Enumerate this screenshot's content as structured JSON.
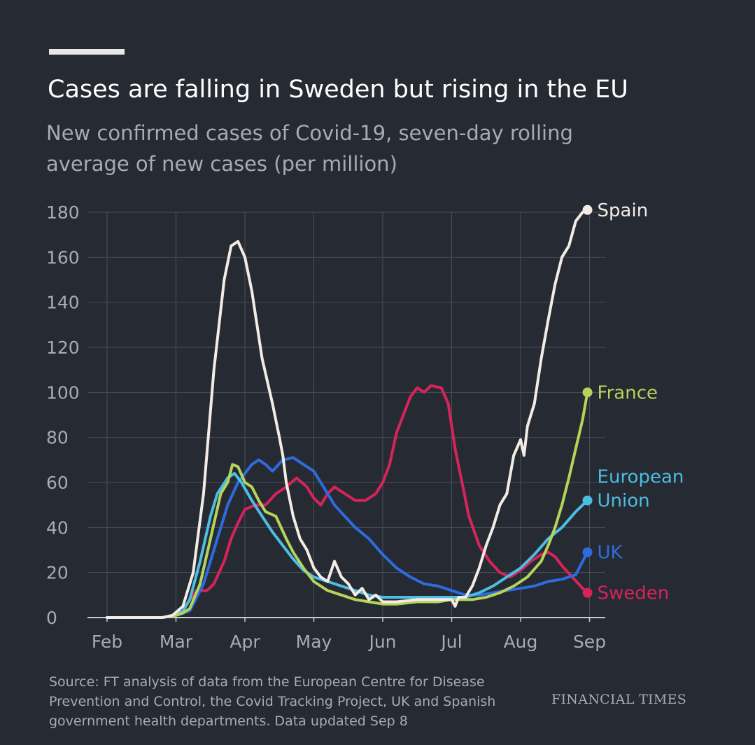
{
  "header": {
    "title": "Cases are falling in Sweden but rising in the EU",
    "subtitle": "New confirmed cases of Covid-19, seven-day rolling average of new cases (per million)"
  },
  "footer": {
    "source": "Source: FT analysis of data from the European Centre for Disease Prevention and Control, the Covid Tracking Project, UK and Spanish government health departments. Data updated Sep 8",
    "brand": "FINANCIAL TIMES"
  },
  "colors": {
    "background": "#262a33",
    "grid": "#4a4f5a",
    "axis_text": "#a7abb3"
  },
  "chart_data": {
    "type": "line",
    "title": "Cases are falling in Sweden but rising in the EU",
    "subtitle": "New confirmed cases of Covid-19, seven-day rolling average of new cases (per million)",
    "xlabel": "",
    "ylabel": "",
    "x_ticks": [
      "Feb",
      "Mar",
      "Apr",
      "May",
      "Jun",
      "Jul",
      "Aug",
      "Sep"
    ],
    "x_unit": "months since 1 Feb 2020",
    "xlim": [
      -0.1,
      7.05
    ],
    "ylim": [
      0,
      180
    ],
    "y_ticks": [
      0,
      20,
      40,
      60,
      80,
      100,
      120,
      140,
      160,
      180
    ],
    "grid": true,
    "legend": "direct labels at line ends (right)",
    "series": [
      {
        "name": "Spain",
        "color": "#f3ece4",
        "points": [
          [
            0,
            0
          ],
          [
            0.5,
            0
          ],
          [
            0.8,
            0
          ],
          [
            0.95,
            1
          ],
          [
            1.1,
            5
          ],
          [
            1.25,
            20
          ],
          [
            1.4,
            55
          ],
          [
            1.55,
            110
          ],
          [
            1.7,
            150
          ],
          [
            1.8,
            165
          ],
          [
            1.9,
            167
          ],
          [
            2.0,
            160
          ],
          [
            2.1,
            145
          ],
          [
            2.25,
            115
          ],
          [
            2.4,
            95
          ],
          [
            2.5,
            80
          ],
          [
            2.55,
            72
          ],
          [
            2.6,
            60
          ],
          [
            2.7,
            45
          ],
          [
            2.8,
            35
          ],
          [
            2.9,
            30
          ],
          [
            3.0,
            22
          ],
          [
            3.1,
            18
          ],
          [
            3.2,
            16
          ],
          [
            3.3,
            25
          ],
          [
            3.4,
            18
          ],
          [
            3.5,
            15
          ],
          [
            3.6,
            10
          ],
          [
            3.7,
            13
          ],
          [
            3.8,
            8
          ],
          [
            3.9,
            10
          ],
          [
            4.0,
            7
          ],
          [
            4.2,
            7
          ],
          [
            4.5,
            8
          ],
          [
            4.8,
            8
          ],
          [
            5.0,
            8
          ],
          [
            5.05,
            5
          ],
          [
            5.1,
            9
          ],
          [
            5.2,
            9
          ],
          [
            5.3,
            14
          ],
          [
            5.4,
            22
          ],
          [
            5.5,
            32
          ],
          [
            5.6,
            40
          ],
          [
            5.7,
            50
          ],
          [
            5.8,
            55
          ],
          [
            5.9,
            72
          ],
          [
            6.0,
            79
          ],
          [
            6.05,
            72
          ],
          [
            6.1,
            85
          ],
          [
            6.2,
            95
          ],
          [
            6.3,
            115
          ],
          [
            6.4,
            132
          ],
          [
            6.5,
            148
          ],
          [
            6.6,
            160
          ],
          [
            6.7,
            165
          ],
          [
            6.8,
            176
          ],
          [
            6.9,
            180
          ],
          [
            6.97,
            181
          ]
        ],
        "end_value": 181
      },
      {
        "name": "France",
        "color": "#b5d45a",
        "points": [
          [
            0,
            0
          ],
          [
            0.5,
            0
          ],
          [
            0.8,
            0
          ],
          [
            1.0,
            1
          ],
          [
            1.1,
            2
          ],
          [
            1.2,
            4
          ],
          [
            1.35,
            15
          ],
          [
            1.5,
            35
          ],
          [
            1.65,
            55
          ],
          [
            1.75,
            60
          ],
          [
            1.82,
            68
          ],
          [
            1.9,
            67
          ],
          [
            2.0,
            60
          ],
          [
            2.1,
            58
          ],
          [
            2.2,
            52
          ],
          [
            2.3,
            47
          ],
          [
            2.45,
            45
          ],
          [
            2.6,
            35
          ],
          [
            2.7,
            29
          ],
          [
            2.85,
            22
          ],
          [
            3.0,
            16
          ],
          [
            3.2,
            12
          ],
          [
            3.4,
            10
          ],
          [
            3.6,
            8
          ],
          [
            3.8,
            7
          ],
          [
            4.0,
            6
          ],
          [
            4.2,
            6
          ],
          [
            4.5,
            7
          ],
          [
            4.8,
            7
          ],
          [
            5.0,
            8
          ],
          [
            5.3,
            8
          ],
          [
            5.5,
            9
          ],
          [
            5.7,
            11
          ],
          [
            5.9,
            14
          ],
          [
            6.1,
            18
          ],
          [
            6.3,
            25
          ],
          [
            6.4,
            32
          ],
          [
            6.5,
            40
          ],
          [
            6.6,
            50
          ],
          [
            6.7,
            62
          ],
          [
            6.8,
            75
          ],
          [
            6.9,
            88
          ],
          [
            6.97,
            100
          ]
        ],
        "end_value": 100
      },
      {
        "name": "European Union",
        "color": "#4dbde3",
        "points": [
          [
            0,
            0
          ],
          [
            0.5,
            0
          ],
          [
            0.8,
            0
          ],
          [
            0.95,
            1
          ],
          [
            1.1,
            3
          ],
          [
            1.2,
            8
          ],
          [
            1.35,
            25
          ],
          [
            1.5,
            45
          ],
          [
            1.6,
            55
          ],
          [
            1.75,
            62
          ],
          [
            1.85,
            64
          ],
          [
            1.95,
            60
          ],
          [
            2.1,
            52
          ],
          [
            2.25,
            45
          ],
          [
            2.4,
            38
          ],
          [
            2.55,
            32
          ],
          [
            2.7,
            26
          ],
          [
            2.85,
            21
          ],
          [
            3.0,
            18
          ],
          [
            3.2,
            16
          ],
          [
            3.4,
            14
          ],
          [
            3.6,
            12
          ],
          [
            3.8,
            10
          ],
          [
            4.0,
            9
          ],
          [
            4.2,
            9
          ],
          [
            4.5,
            9
          ],
          [
            4.8,
            9
          ],
          [
            5.0,
            9
          ],
          [
            5.2,
            9
          ],
          [
            5.4,
            11
          ],
          [
            5.6,
            14
          ],
          [
            5.8,
            18
          ],
          [
            6.0,
            22
          ],
          [
            6.2,
            28
          ],
          [
            6.4,
            35
          ],
          [
            6.6,
            40
          ],
          [
            6.8,
            47
          ],
          [
            6.97,
            52
          ]
        ],
        "end_value": 52
      },
      {
        "name": "UK",
        "color": "#2f6be0",
        "points": [
          [
            0,
            0
          ],
          [
            0.5,
            0
          ],
          [
            0.8,
            0
          ],
          [
            1.0,
            1
          ],
          [
            1.2,
            3
          ],
          [
            1.4,
            15
          ],
          [
            1.6,
            35
          ],
          [
            1.75,
            50
          ],
          [
            1.9,
            60
          ],
          [
            2.0,
            64
          ],
          [
            2.1,
            68
          ],
          [
            2.2,
            70
          ],
          [
            2.3,
            68
          ],
          [
            2.4,
            65
          ],
          [
            2.55,
            70
          ],
          [
            2.7,
            71
          ],
          [
            2.85,
            68
          ],
          [
            3.0,
            65
          ],
          [
            3.1,
            60
          ],
          [
            3.2,
            55
          ],
          [
            3.3,
            50
          ],
          [
            3.45,
            45
          ],
          [
            3.6,
            40
          ],
          [
            3.8,
            35
          ],
          [
            4.0,
            28
          ],
          [
            4.2,
            22
          ],
          [
            4.4,
            18
          ],
          [
            4.6,
            15
          ],
          [
            4.8,
            14
          ],
          [
            5.0,
            12
          ],
          [
            5.2,
            10
          ],
          [
            5.4,
            10
          ],
          [
            5.6,
            11
          ],
          [
            5.8,
            12
          ],
          [
            6.0,
            13
          ],
          [
            6.2,
            14
          ],
          [
            6.4,
            16
          ],
          [
            6.6,
            17
          ],
          [
            6.8,
            19
          ],
          [
            6.97,
            29
          ]
        ],
        "end_value": 29
      },
      {
        "name": "Sweden",
        "color": "#d6245a",
        "points": [
          [
            0,
            0
          ],
          [
            0.5,
            0
          ],
          [
            0.8,
            0
          ],
          [
            1.0,
            1
          ],
          [
            1.1,
            3
          ],
          [
            1.2,
            8
          ],
          [
            1.3,
            12
          ],
          [
            1.45,
            12
          ],
          [
            1.55,
            15
          ],
          [
            1.7,
            25
          ],
          [
            1.8,
            35
          ],
          [
            1.9,
            42
          ],
          [
            2.0,
            48
          ],
          [
            2.15,
            50
          ],
          [
            2.3,
            50
          ],
          [
            2.45,
            55
          ],
          [
            2.6,
            58
          ],
          [
            2.75,
            62
          ],
          [
            2.9,
            58
          ],
          [
            3.0,
            53
          ],
          [
            3.1,
            50
          ],
          [
            3.2,
            55
          ],
          [
            3.3,
            58
          ],
          [
            3.45,
            55
          ],
          [
            3.6,
            52
          ],
          [
            3.75,
            52
          ],
          [
            3.9,
            55
          ],
          [
            4.0,
            60
          ],
          [
            4.1,
            68
          ],
          [
            4.2,
            82
          ],
          [
            4.3,
            90
          ],
          [
            4.4,
            98
          ],
          [
            4.5,
            102
          ],
          [
            4.6,
            100
          ],
          [
            4.7,
            103
          ],
          [
            4.85,
            102
          ],
          [
            4.95,
            95
          ],
          [
            5.05,
            75
          ],
          [
            5.15,
            60
          ],
          [
            5.25,
            45
          ],
          [
            5.4,
            32
          ],
          [
            5.55,
            25
          ],
          [
            5.7,
            20
          ],
          [
            5.85,
            18
          ],
          [
            6.0,
            21
          ],
          [
            6.15,
            25
          ],
          [
            6.3,
            28
          ],
          [
            6.4,
            29
          ],
          [
            6.5,
            27
          ],
          [
            6.6,
            23
          ],
          [
            6.75,
            18
          ],
          [
            6.9,
            13
          ],
          [
            6.97,
            11
          ]
        ],
        "end_value": 11
      }
    ]
  }
}
